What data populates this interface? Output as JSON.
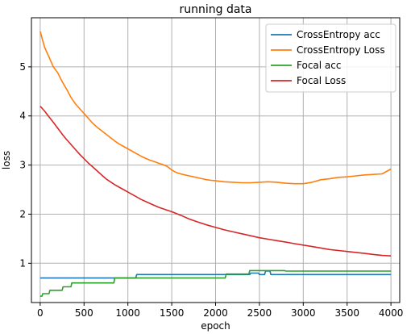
{
  "chart_data": {
    "type": "line",
    "title": "running data",
    "xlabel": "epoch",
    "ylabel": "loss",
    "xlim": [
      -100,
      4100
    ],
    "ylim": [
      0.2,
      6.0
    ],
    "xticks": [
      0,
      500,
      1000,
      1500,
      2000,
      2500,
      3000,
      3500,
      4000
    ],
    "yticks": [
      1,
      2,
      3,
      4,
      5
    ],
    "grid": true,
    "legend_position": "top-right",
    "series": [
      {
        "name": "CrossEntropy acc",
        "color": "#1f77b4",
        "x": [
          0,
          1090,
          1100,
          2390,
          2400,
          2490,
          2500,
          2560,
          2570,
          2620,
          2630,
          2780,
          2790,
          4000
        ],
        "y": [
          0.7,
          0.7,
          0.77,
          0.77,
          0.8,
          0.8,
          0.77,
          0.77,
          0.84,
          0.84,
          0.77,
          0.77,
          0.77,
          0.77
        ]
      },
      {
        "name": "CrossEntropy Loss",
        "color": "#ff7f0e",
        "x": [
          0,
          50,
          100,
          150,
          200,
          250,
          300,
          350,
          400,
          450,
          500,
          550,
          600,
          650,
          700,
          750,
          800,
          850,
          900,
          950,
          1000,
          1050,
          1100,
          1150,
          1200,
          1250,
          1300,
          1350,
          1400,
          1450,
          1500,
          1550,
          1600,
          1650,
          1700,
          1750,
          1800,
          1850,
          1900,
          1950,
          2000,
          2100,
          2200,
          2300,
          2400,
          2500,
          2600,
          2700,
          2800,
          2900,
          3000,
          3100,
          3200,
          3300,
          3400,
          3500,
          3600,
          3700,
          3800,
          3900,
          4000
        ],
        "y": [
          5.72,
          5.4,
          5.2,
          5.0,
          4.88,
          4.7,
          4.55,
          4.38,
          4.25,
          4.15,
          4.05,
          3.95,
          3.85,
          3.77,
          3.7,
          3.63,
          3.56,
          3.49,
          3.43,
          3.38,
          3.33,
          3.28,
          3.23,
          3.18,
          3.14,
          3.1,
          3.07,
          3.04,
          3.01,
          2.97,
          2.9,
          2.85,
          2.82,
          2.8,
          2.78,
          2.76,
          2.74,
          2.72,
          2.7,
          2.69,
          2.68,
          2.66,
          2.65,
          2.64,
          2.64,
          2.65,
          2.66,
          2.65,
          2.63,
          2.62,
          2.62,
          2.65,
          2.7,
          2.72,
          2.75,
          2.76,
          2.78,
          2.8,
          2.81,
          2.82,
          2.92
        ]
      },
      {
        "name": "Focal acc",
        "color": "#2ca02c",
        "x": [
          0,
          20,
          30,
          100,
          110,
          250,
          260,
          350,
          360,
          840,
          850,
          2110,
          2120,
          2380,
          2390,
          2790,
          2800,
          4000
        ],
        "y": [
          0.33,
          0.33,
          0.38,
          0.38,
          0.45,
          0.45,
          0.52,
          0.52,
          0.6,
          0.6,
          0.7,
          0.7,
          0.78,
          0.78,
          0.85,
          0.85,
          0.84,
          0.84
        ]
      },
      {
        "name": "Focal Loss",
        "color": "#d62728",
        "x": [
          0,
          50,
          100,
          150,
          200,
          250,
          300,
          350,
          400,
          450,
          500,
          550,
          600,
          650,
          700,
          750,
          800,
          850,
          900,
          950,
          1000,
          1050,
          1100,
          1150,
          1200,
          1250,
          1300,
          1350,
          1400,
          1450,
          1500,
          1600,
          1700,
          1800,
          1900,
          2000,
          2100,
          2200,
          2300,
          2400,
          2500,
          2600,
          2700,
          2800,
          2900,
          3000,
          3100,
          3200,
          3300,
          3400,
          3500,
          3600,
          3700,
          3800,
          3900,
          4000
        ],
        "y": [
          4.2,
          4.1,
          3.98,
          3.87,
          3.75,
          3.63,
          3.52,
          3.42,
          3.32,
          3.22,
          3.13,
          3.04,
          2.96,
          2.88,
          2.8,
          2.72,
          2.66,
          2.6,
          2.55,
          2.5,
          2.45,
          2.4,
          2.35,
          2.3,
          2.26,
          2.22,
          2.18,
          2.14,
          2.11,
          2.08,
          2.05,
          1.98,
          1.9,
          1.84,
          1.78,
          1.73,
          1.68,
          1.64,
          1.6,
          1.56,
          1.52,
          1.49,
          1.46,
          1.43,
          1.4,
          1.37,
          1.34,
          1.31,
          1.28,
          1.26,
          1.24,
          1.22,
          1.2,
          1.18,
          1.16,
          1.15
        ]
      }
    ]
  }
}
